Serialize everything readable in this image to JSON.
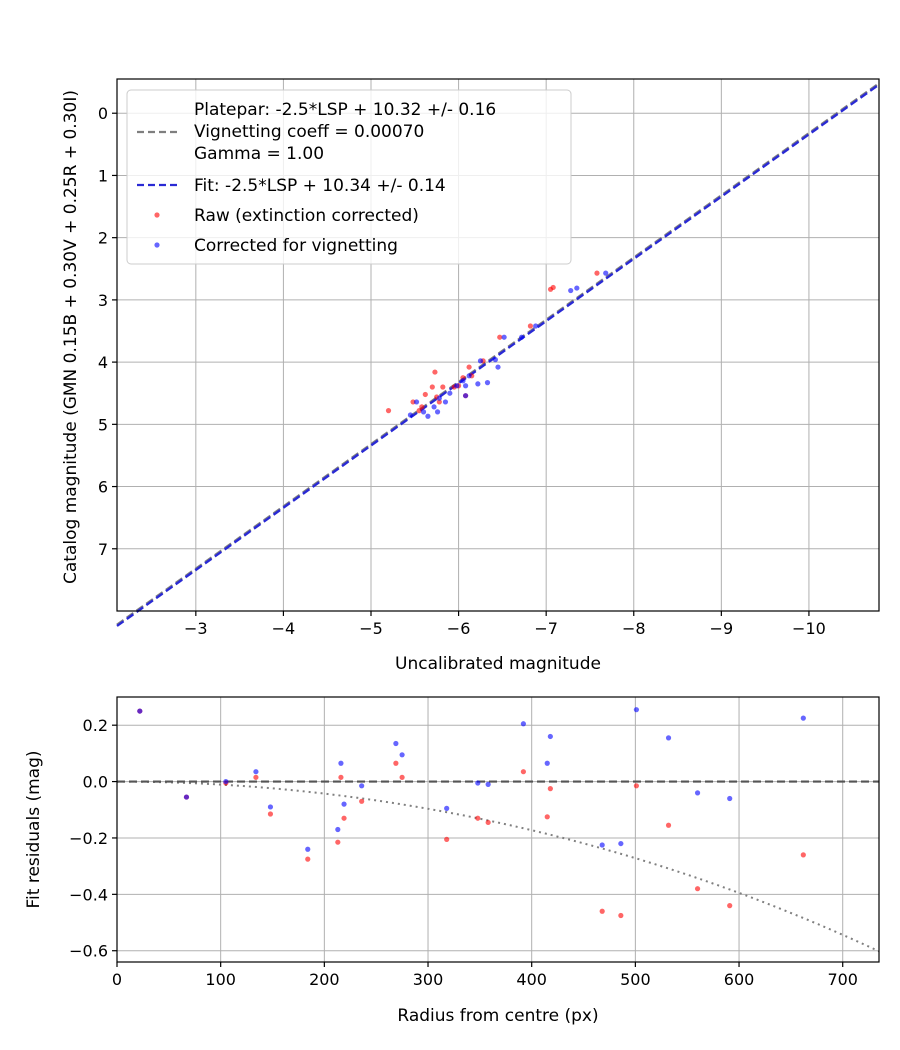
{
  "chart_data": [
    {
      "type": "scatter",
      "title": "",
      "xlabel": "Uncalibrated magnitude",
      "ylabel": "Catalog magnitude (GMN 0.15B + 0.30V + 0.25R + 0.30I)",
      "xlim": [
        -2.1,
        -10.8
      ],
      "ylim": [
        8.0,
        -0.55
      ],
      "grid": true,
      "legend_position": "upper-left",
      "x_ticks": [
        -3,
        -4,
        -5,
        -6,
        -7,
        -8,
        -9,
        -10
      ],
      "x_tick_labels": [
        "−3",
        "−4",
        "−5",
        "−6",
        "−7",
        "−8",
        "−9",
        "−10"
      ],
      "y_ticks": [
        0,
        1,
        2,
        3,
        4,
        5,
        6,
        7
      ],
      "y_tick_labels": [
        "0",
        "1",
        "2",
        "3",
        "4",
        "5",
        "6",
        "7"
      ],
      "legend": [
        "Platepar: -2.5*LSP + 10.32 +/- 0.16",
        "Vignetting coeff = 0.00070",
        "Gamma = 1.00",
        "Fit: -2.5*LSP + 10.34 +/- 0.14",
        "Raw (extinction corrected)",
        "Corrected for vignetting"
      ],
      "lines": [
        {
          "name": "Platepar",
          "color": "#7f7f7f",
          "dash": "dashed",
          "x_range": [
            -2.1,
            -10.8
          ],
          "intercept": 10.32
        },
        {
          "name": "Fit",
          "color": "#2a2ad4",
          "dash": "dashed",
          "x_range": [
            -2.1,
            -10.8
          ],
          "intercept": 10.34
        }
      ],
      "series": [
        {
          "name": "Raw (extinction corrected)",
          "color": "#ff0000",
          "points": [
            [
              -5.2,
              4.78
            ],
            [
              -5.48,
              4.64
            ],
            [
              -5.55,
              4.78
            ],
            [
              -5.58,
              4.72
            ],
            [
              -5.62,
              4.52
            ],
            [
              -5.7,
              4.4
            ],
            [
              -5.73,
              4.16
            ],
            [
              -5.75,
              4.56
            ],
            [
              -5.78,
              4.64
            ],
            [
              -5.82,
              4.4
            ],
            [
              -5.95,
              4.4
            ],
            [
              -6.0,
              4.38
            ],
            [
              -6.05,
              4.25
            ],
            [
              -6.08,
              4.54
            ],
            [
              -6.12,
              4.08
            ],
            [
              -6.15,
              4.22
            ],
            [
              -6.28,
              3.98
            ],
            [
              -6.47,
              3.6
            ],
            [
              -6.82,
              3.42
            ],
            [
              -7.05,
              2.83
            ],
            [
              -7.08,
              2.8
            ],
            [
              -7.58,
              2.57
            ]
          ]
        },
        {
          "name": "Corrected for vignetting",
          "color": "#0000ff",
          "points": [
            [
              -5.45,
              4.85
            ],
            [
              -5.52,
              4.64
            ],
            [
              -5.6,
              4.8
            ],
            [
              -5.65,
              4.87
            ],
            [
              -5.72,
              4.72
            ],
            [
              -5.76,
              4.8
            ],
            [
              -5.78,
              4.58
            ],
            [
              -5.85,
              4.64
            ],
            [
              -5.9,
              4.5
            ],
            [
              -5.98,
              4.38
            ],
            [
              -6.05,
              4.3
            ],
            [
              -6.08,
              4.38
            ],
            [
              -6.12,
              4.22
            ],
            [
              -6.22,
              4.35
            ],
            [
              -6.25,
              3.98
            ],
            [
              -6.33,
              4.33
            ],
            [
              -6.42,
              3.96
            ],
            [
              -6.45,
              4.08
            ],
            [
              -6.52,
              3.6
            ],
            [
              -6.72,
              3.6
            ],
            [
              -6.88,
              3.42
            ],
            [
              -7.28,
              2.85
            ],
            [
              -7.35,
              2.81
            ],
            [
              -7.68,
              2.57
            ],
            [
              -6.08,
              4.54
            ]
          ]
        }
      ]
    },
    {
      "type": "scatter",
      "title": "",
      "xlabel": "Radius from centre (px)",
      "ylabel": "Fit residuals (mag)",
      "xlim": [
        0,
        735
      ],
      "ylim": [
        -0.64,
        0.3
      ],
      "grid": true,
      "x_ticks": [
        0,
        100,
        200,
        300,
        400,
        500,
        600,
        700
      ],
      "x_tick_labels": [
        "0",
        "100",
        "200",
        "300",
        "400",
        "500",
        "600",
        "700"
      ],
      "y_ticks": [
        0.2,
        0.0,
        -0.2,
        -0.4,
        -0.6
      ],
      "y_tick_labels": [
        "0.2",
        "0.0",
        "−0.2",
        "−0.4",
        "−0.6"
      ],
      "zero_line": {
        "color": "#555555",
        "dash": "dashed",
        "y": 0.0
      },
      "vignetting_curve": {
        "color": "#808080",
        "dash": "dotted",
        "coeff": 0.0007,
        "x_range": [
          0,
          735
        ]
      },
      "series": [
        {
          "name": "Raw (extinction corrected)",
          "color": "#ff0000",
          "points": [
            [
              22,
              0.25
            ],
            [
              67,
              -0.055
            ],
            [
              105,
              -0.005
            ],
            [
              134,
              0.015
            ],
            [
              148,
              -0.115
            ],
            [
              184,
              -0.275
            ],
            [
              213,
              -0.215
            ],
            [
              216,
              0.015
            ],
            [
              219,
              -0.13
            ],
            [
              236,
              -0.07
            ],
            [
              269,
              0.065
            ],
            [
              275,
              0.015
            ],
            [
              318,
              -0.205
            ],
            [
              348,
              -0.13
            ],
            [
              358,
              -0.145
            ],
            [
              392,
              0.035
            ],
            [
              415,
              -0.125
            ],
            [
              418,
              -0.025
            ],
            [
              468,
              -0.46
            ],
            [
              486,
              -0.475
            ],
            [
              501,
              -0.015
            ],
            [
              532,
              -0.155
            ],
            [
              560,
              -0.38
            ],
            [
              591,
              -0.44
            ],
            [
              662,
              -0.26
            ]
          ]
        },
        {
          "name": "Corrected for vignetting",
          "color": "#0000ff",
          "points": [
            [
              22,
              0.25
            ],
            [
              67,
              -0.055
            ],
            [
              105,
              0.0
            ],
            [
              134,
              0.035
            ],
            [
              148,
              -0.09
            ],
            [
              184,
              -0.24
            ],
            [
              213,
              -0.17
            ],
            [
              216,
              0.065
            ],
            [
              219,
              -0.08
            ],
            [
              236,
              -0.015
            ],
            [
              269,
              0.135
            ],
            [
              275,
              0.095
            ],
            [
              318,
              -0.095
            ],
            [
              348,
              -0.005
            ],
            [
              358,
              -0.01
            ],
            [
              392,
              0.205
            ],
            [
              415,
              0.065
            ],
            [
              418,
              0.16
            ],
            [
              468,
              -0.225
            ],
            [
              486,
              -0.22
            ],
            [
              501,
              0.255
            ],
            [
              532,
              0.155
            ],
            [
              560,
              -0.04
            ],
            [
              591,
              -0.06
            ],
            [
              662,
              0.225
            ]
          ]
        }
      ]
    }
  ]
}
